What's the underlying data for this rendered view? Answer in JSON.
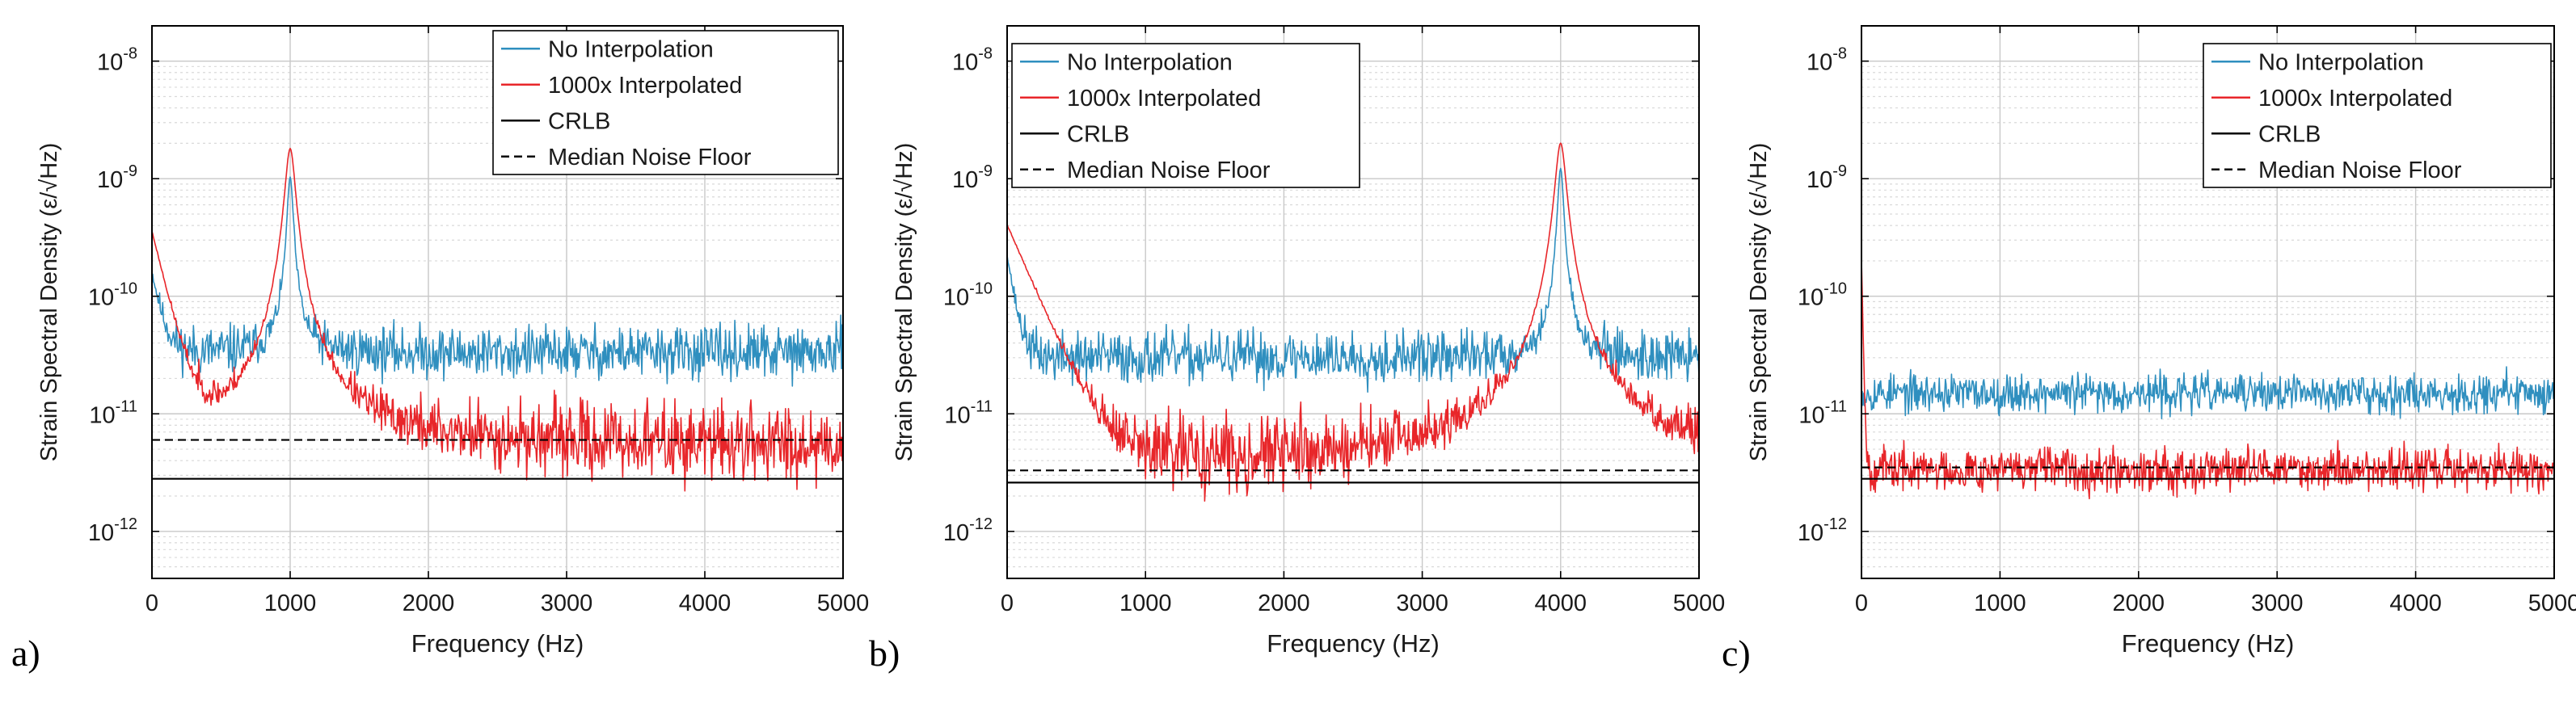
{
  "figure": {
    "colors": {
      "no_interp": "#2f8fbf",
      "interp": "#e8262a",
      "crlb": "#000000",
      "median": "#000000",
      "grid": "#d9d9d9"
    }
  },
  "chart_data": [
    {
      "type": "line",
      "panel_label": "a)",
      "xlabel": "Frequency (Hz)",
      "ylabel": "Strain Spectral Density (ε/√Hz)",
      "xlim": [
        0,
        5000
      ],
      "ylim_log10": [
        -12.4,
        -7.7
      ],
      "x_ticks": [
        0,
        1000,
        2000,
        3000,
        4000,
        5000
      ],
      "x_tick_labels": [
        "0",
        "1000",
        "2000",
        "3000",
        "4000",
        "5000"
      ],
      "y_ticks_log10": [
        -12,
        -11,
        -10,
        -9,
        -8
      ],
      "y_tick_labels": [
        {
          "base": "10",
          "exp": "-12"
        },
        {
          "base": "10",
          "exp": "-11"
        },
        {
          "base": "10",
          "exp": "-10"
        },
        {
          "base": "10",
          "exp": "-9"
        },
        {
          "base": "10",
          "exp": "-8"
        }
      ],
      "legend": {
        "position": "top-right",
        "entries": [
          "No Interpolation",
          "1000x Interpolated",
          "CRLB",
          "Median Noise Floor"
        ]
      },
      "series": [
        {
          "name": "No Interpolation",
          "style": "noise",
          "baseline": 3.3e-11,
          "spread_dex": 0.11,
          "peak_hz": 1000,
          "peak_value": 1e-09,
          "peak_width_hz": 20,
          "low_freq_start": 1.3e-10,
          "low_freq_decay_hz": 60,
          "seed": 11
        },
        {
          "name": "1000x Interpolated",
          "style": "noise",
          "baseline": 5.5e-12,
          "spread_dex": 0.17,
          "peak_hz": 1000,
          "peak_value": 1.8e-09,
          "peak_width_hz": 34,
          "low_freq_start": 3.5e-10,
          "low_freq_decay_hz": 90,
          "seed": 23
        },
        {
          "name": "CRLB",
          "style": "solid",
          "value": 2.8e-12
        },
        {
          "name": "Median Noise Floor",
          "style": "dashed",
          "value": 6e-12
        }
      ]
    },
    {
      "type": "line",
      "panel_label": "b)",
      "xlabel": "Frequency (Hz)",
      "ylabel": "Strain Spectral Density (ε/√Hz)",
      "xlim": [
        0,
        5000
      ],
      "ylim_log10": [
        -12.4,
        -7.7
      ],
      "x_ticks": [
        0,
        1000,
        2000,
        3000,
        4000,
        5000
      ],
      "x_tick_labels": [
        "0",
        "1000",
        "2000",
        "3000",
        "4000",
        "5000"
      ],
      "y_ticks_log10": [
        -12,
        -11,
        -10,
        -9,
        -8
      ],
      "y_tick_labels": [
        {
          "base": "10",
          "exp": "-12"
        },
        {
          "base": "10",
          "exp": "-11"
        },
        {
          "base": "10",
          "exp": "-10"
        },
        {
          "base": "10",
          "exp": "-9"
        },
        {
          "base": "10",
          "exp": "-8"
        }
      ],
      "legend": {
        "position": "top",
        "entries": [
          "No Interpolation",
          "1000x Interpolated",
          "CRLB",
          "Median Noise Floor"
        ]
      },
      "series": [
        {
          "name": "No Interpolation",
          "style": "noise",
          "baseline": 3e-11,
          "spread_dex": 0.11,
          "peak_hz": 4000,
          "peak_value": 1.2e-09,
          "peak_width_hz": 20,
          "low_freq_start": 2e-10,
          "low_freq_decay_hz": 50,
          "seed": 37
        },
        {
          "name": "1000x Interpolated",
          "style": "noise",
          "baseline": 4e-12,
          "spread_dex": 0.18,
          "peak_hz": 4000,
          "peak_value": 2e-09,
          "peak_width_hz": 36,
          "low_freq_start": 4e-10,
          "low_freq_decay_hz": 160,
          "seed": 41
        },
        {
          "name": "CRLB",
          "style": "solid",
          "value": 2.6e-12
        },
        {
          "name": "Median Noise Floor",
          "style": "dashed",
          "value": 3.3e-12
        }
      ]
    },
    {
      "type": "line",
      "panel_label": "c)",
      "xlabel": "Frequency (Hz)",
      "ylabel": "Strain Spectral Density (ε/√Hz)",
      "xlim": [
        0,
        5000
      ],
      "ylim_log10": [
        -12.4,
        -7.7
      ],
      "x_ticks": [
        0,
        1000,
        2000,
        3000,
        4000,
        5000
      ],
      "x_tick_labels": [
        "0",
        "1000",
        "2000",
        "3000",
        "4000",
        "5000"
      ],
      "y_ticks_log10": [
        -12,
        -11,
        -10,
        -9,
        -8
      ],
      "y_tick_labels": [
        {
          "base": "10",
          "exp": "-12"
        },
        {
          "base": "10",
          "exp": "-11"
        },
        {
          "base": "10",
          "exp": "-10"
        },
        {
          "base": "10",
          "exp": "-9"
        },
        {
          "base": "10",
          "exp": "-8"
        }
      ],
      "legend": {
        "position": "top-right",
        "entries": [
          "No Interpolation",
          "1000x Interpolated",
          "CRLB",
          "Median Noise Floor"
        ]
      },
      "series": [
        {
          "name": "No Interpolation",
          "style": "noise",
          "baseline": 1.5e-11,
          "spread_dex": 0.08,
          "seed": 53
        },
        {
          "name": "1000x Interpolated",
          "style": "noise",
          "baseline": 3.4e-12,
          "spread_dex": 0.09,
          "low_freq_start": 2e-10,
          "low_freq_decay_hz": 8,
          "seed": 67
        },
        {
          "name": "CRLB",
          "style": "solid",
          "value": 2.8e-12
        },
        {
          "name": "Median Noise Floor",
          "style": "dashed",
          "value": 3.5e-12
        }
      ]
    }
  ]
}
